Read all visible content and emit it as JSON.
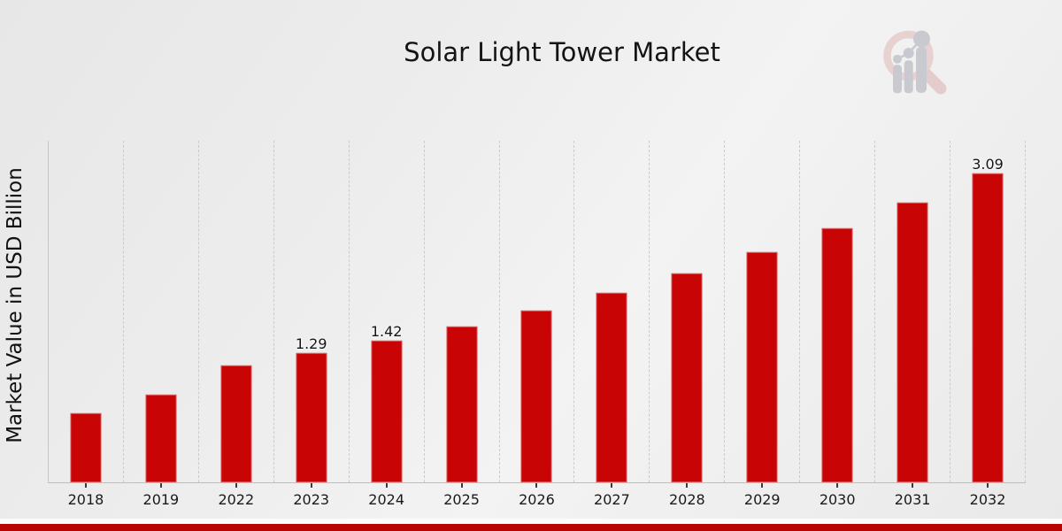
{
  "page": {
    "title": "Solar Light Tower Market"
  },
  "chart_data": {
    "type": "bar",
    "title": "Solar Light Tower Market",
    "xlabel": "",
    "ylabel": "Market Value in USD Billion",
    "categories": [
      "2018",
      "2019",
      "2022",
      "2023",
      "2024",
      "2025",
      "2026",
      "2027",
      "2028",
      "2029",
      "2030",
      "2031",
      "2032"
    ],
    "values": [
      0.69,
      0.88,
      1.17,
      1.29,
      1.42,
      1.56,
      1.72,
      1.9,
      2.09,
      2.3,
      2.54,
      2.8,
      3.09
    ],
    "bar_labels": [
      "",
      "",
      "",
      "1.29",
      "1.42",
      "",
      "",
      "",
      "",
      "",
      "",
      "",
      "3.09"
    ],
    "ylim": [
      0,
      3.42
    ],
    "grid": "vertical-dashed",
    "legend": "none"
  },
  "colors": {
    "bar_red": "#c90404",
    "band_red": "#b90404",
    "background_grey": "#ededed",
    "gridline_grey": "#cbcbcb",
    "axis_grey": "#c2c2c2",
    "text_dark": "#1a1a1a",
    "logo_ring_pink": "#e7d1d1",
    "logo_handle_pink": "#e5cccc",
    "logo_bars_grey": "#c9cacf"
  },
  "icons": {
    "watermark": "magnifier-bar-chart-logo"
  }
}
